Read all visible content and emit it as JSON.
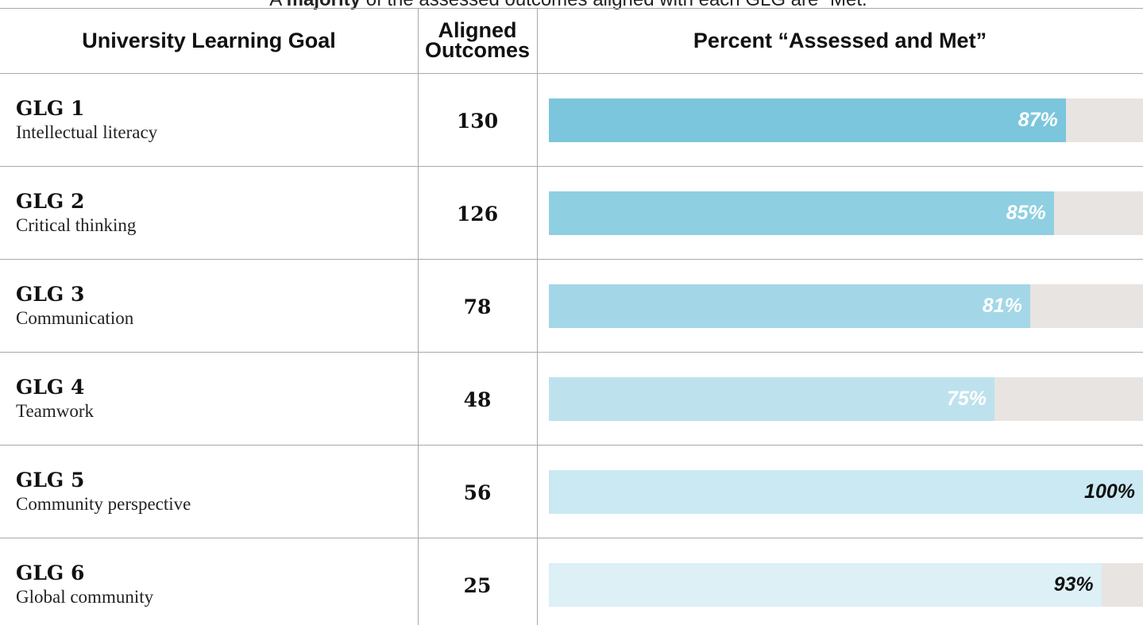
{
  "caption": [
    "A ",
    "majority",
    " of the assessed outcomes aligned with each GLG are “Met.”"
  ],
  "chart_data": {
    "type": "bar",
    "columns": [
      "University Learning Goal",
      "Aligned Outcomes",
      "Percent “Assessed and Met”"
    ],
    "goals": [
      "GLG 1",
      "GLG 2",
      "GLG 3",
      "GLG 4",
      "GLG 5",
      "GLG 6"
    ],
    "categories": [
      "Intellectual literacy",
      "Critical thinking",
      "Communication",
      "Teamwork",
      "Community perspective",
      "Global community"
    ],
    "outcomes": [
      130,
      126,
      78,
      48,
      56,
      25
    ],
    "values": [
      87,
      85,
      81,
      75,
      100,
      93
    ],
    "value_labels": [
      "87%",
      "85%",
      "81%",
      "75%",
      "100%",
      "93%"
    ],
    "xlim": [
      0,
      100
    ],
    "colors": [
      "#7bc6dc",
      "#8fcfe2",
      "#a3d7e7",
      "#bde2ee",
      "#cae9f2",
      "#dcf0f6"
    ],
    "label_colors": [
      "#ffffff",
      "#ffffff",
      "#ffffff",
      "#ffffff",
      "#111111",
      "#111111"
    ],
    "track_color": "#e8e4e1"
  }
}
